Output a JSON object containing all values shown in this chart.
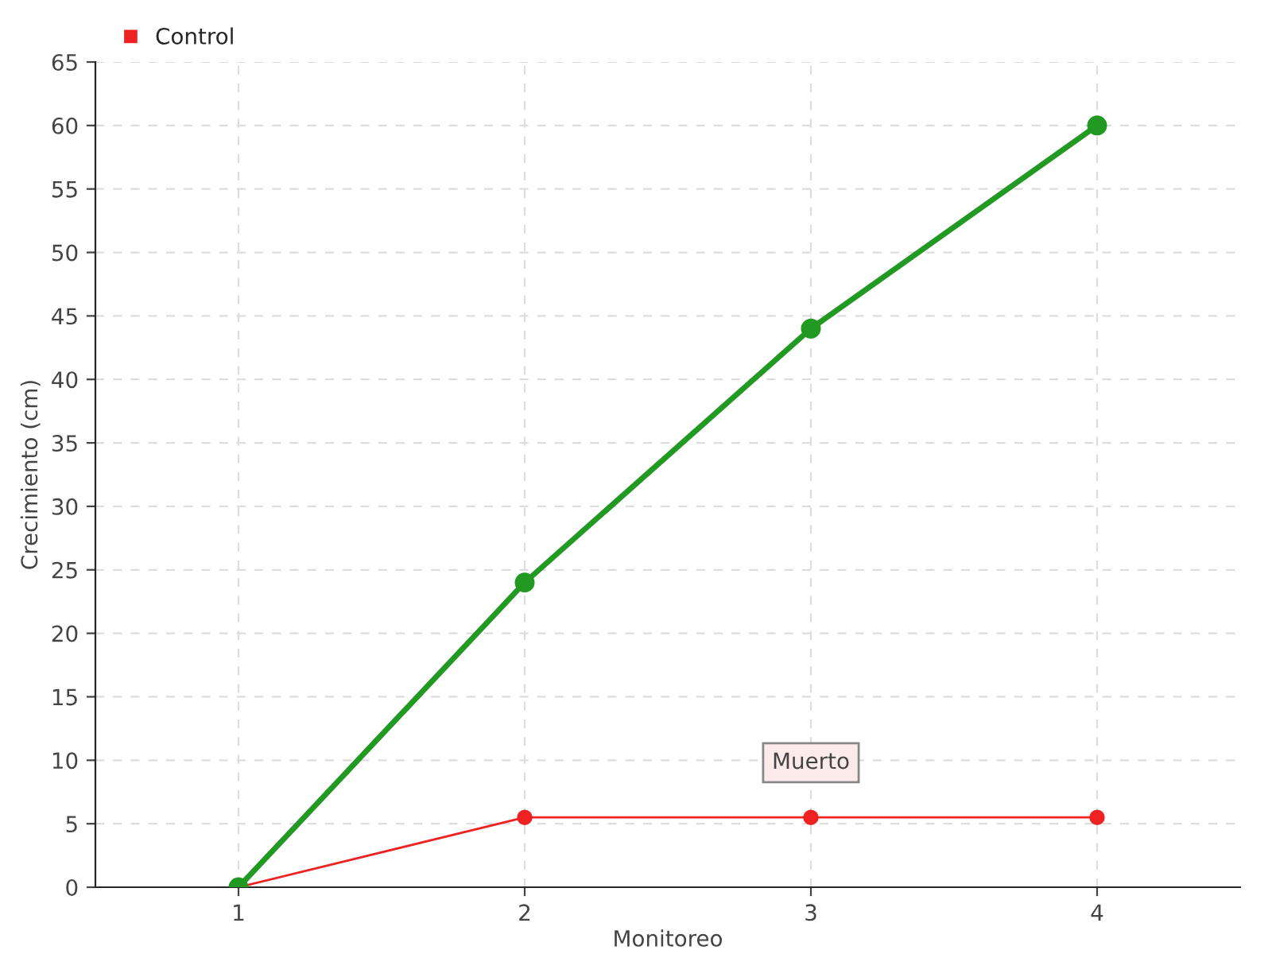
{
  "chart_data": {
    "type": "line",
    "xlabel": "Monitoreo",
    "ylabel": "Crecimiento (cm)",
    "x": [
      1,
      2,
      3,
      4
    ],
    "series": [
      {
        "color": "#229922",
        "values": [
          0,
          24,
          44,
          60
        ]
      },
      {
        "name": "Control",
        "color": "#ee2222",
        "values": [
          0,
          5.5,
          5.5,
          5.5
        ]
      }
    ],
    "xlim": [
      0.5,
      4.5
    ],
    "xticks": [
      1,
      2,
      3,
      4
    ],
    "ylim": [
      0,
      65
    ],
    "yticks": [
      0,
      5,
      10,
      15,
      20,
      25,
      30,
      35,
      40,
      45,
      50,
      55,
      60,
      65
    ],
    "grid": true,
    "legend": "top left",
    "marker": "circle",
    "line_style": "solid",
    "annotations": [
      {
        "text": "Muerto",
        "x": 3,
        "y": 5.5
      }
    ]
  }
}
